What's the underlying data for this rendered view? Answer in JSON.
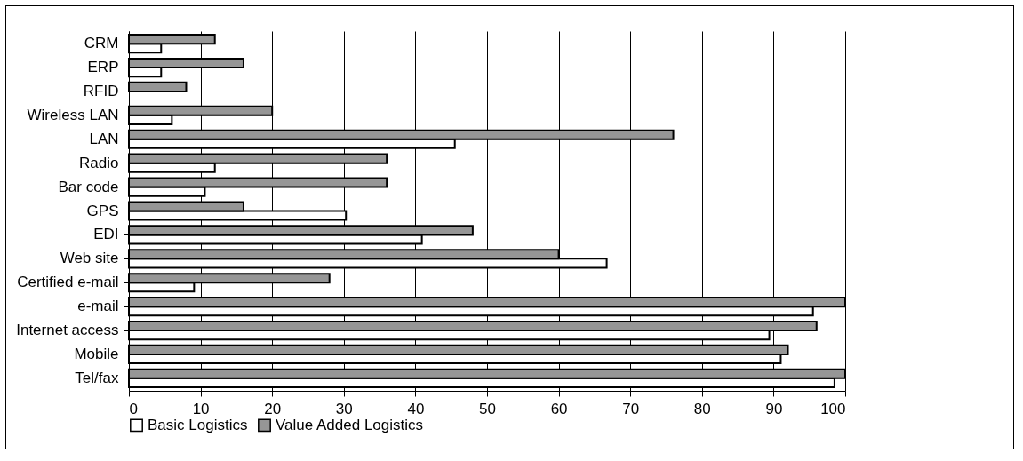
{
  "chart_data": {
    "type": "bar",
    "orientation": "horizontal",
    "categories": [
      "CRM",
      "ERP",
      "RFID",
      "Wireless LAN",
      "LAN",
      "Radio",
      "Bar code",
      "GPS",
      "EDI",
      "Web site",
      "Certified e-mail",
      "e-mail",
      "Internet access",
      "Mobile",
      "Tel/fax"
    ],
    "series": [
      {
        "name": "Basic Logistics",
        "color": "#ffffff",
        "values": [
          4.5,
          4.5,
          null,
          6,
          45.5,
          12,
          10.6,
          30.3,
          40.9,
          66.7,
          9.1,
          95.5,
          89.4,
          91,
          98.5
        ]
      },
      {
        "name": "Value Added Logistics",
        "color": "#969696",
        "values": [
          12,
          16,
          8,
          20,
          76,
          36,
          36,
          16,
          48,
          60,
          28,
          100,
          96,
          92,
          100
        ]
      }
    ],
    "xlim": [
      0,
      100
    ],
    "xticks": [
      0,
      10,
      20,
      30,
      40,
      50,
      60,
      70,
      80,
      90,
      100
    ],
    "grid": "x",
    "legend": "bottom"
  }
}
